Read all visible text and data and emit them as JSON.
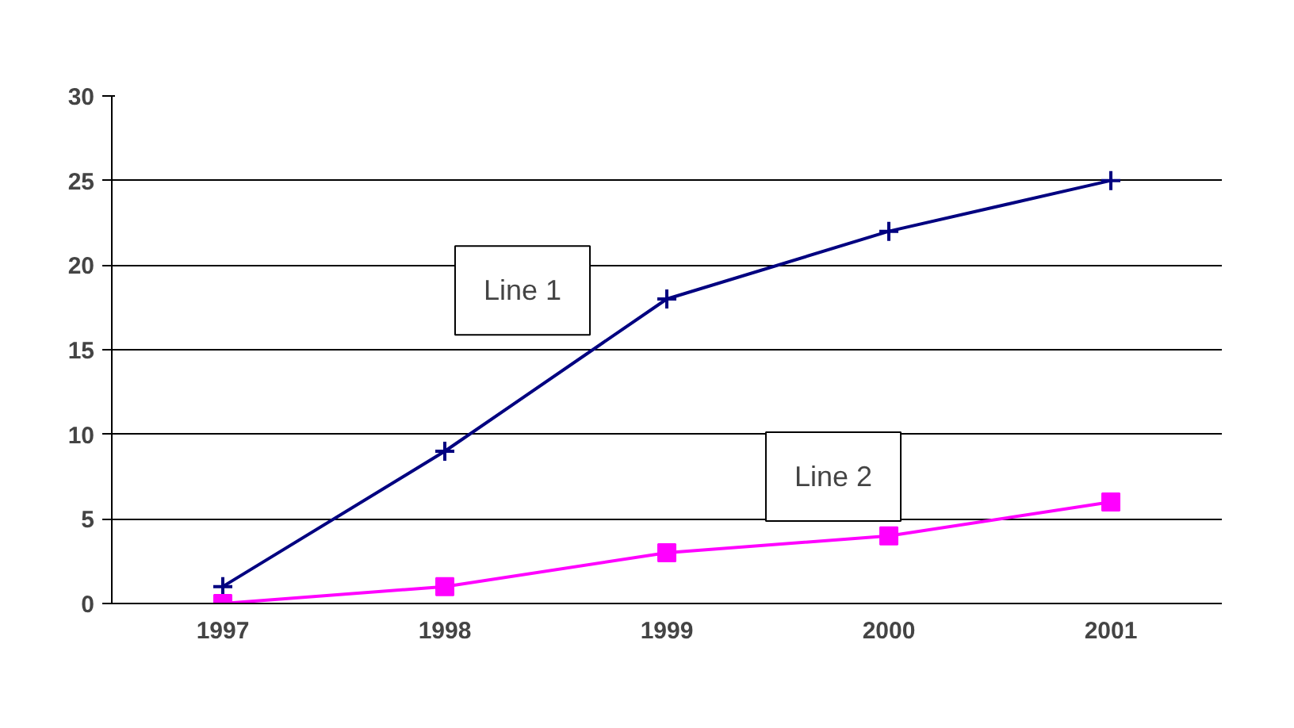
{
  "chart_data": {
    "type": "line",
    "categories": [
      "1997",
      "1998",
      "1999",
      "2000",
      "2001"
    ],
    "series": [
      {
        "name": "Line 1",
        "color": "#000080",
        "values": [
          1,
          9,
          18,
          22,
          25
        ],
        "marker": "cross"
      },
      {
        "name": "Line 2",
        "color": "#ff00ff",
        "values": [
          0,
          1,
          3,
          4,
          6
        ],
        "marker": "square"
      }
    ],
    "ylim": [
      0,
      30
    ],
    "yticks": [
      0,
      5,
      10,
      15,
      20,
      25,
      30
    ],
    "grid": "y",
    "line_style": "solid"
  }
}
